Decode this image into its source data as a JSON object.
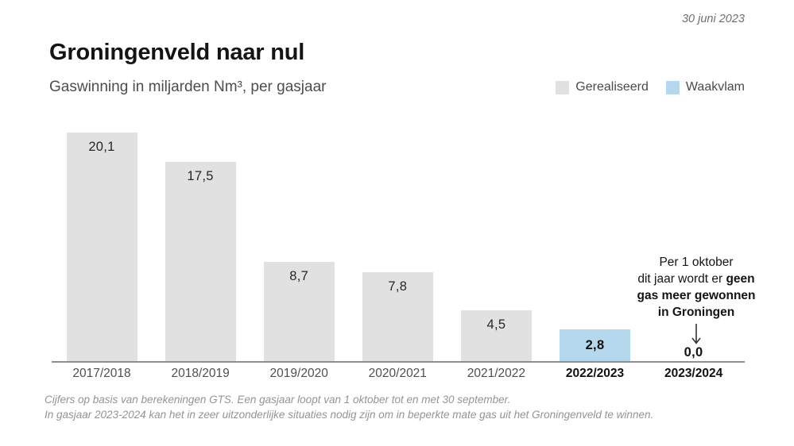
{
  "date": "30 juni 2023",
  "title": "Groningenveld naar nul",
  "subtitle": "Gaswinning in miljarden Nm³, per gasjaar",
  "legend": {
    "items": [
      {
        "label": "Gerealiseerd",
        "color": "#e1e1e1"
      },
      {
        "label": "Waakvlam",
        "color": "#b5d8ec"
      }
    ]
  },
  "chart_data": {
    "type": "bar",
    "title": "Groningenveld naar nul",
    "subtitle": "Gaswinning in miljarden Nm³, per gasjaar",
    "unit": "miljarden Nm³ per gasjaar",
    "categories": [
      "2017/2018",
      "2018/2019",
      "2019/2020",
      "2020/2021",
      "2021/2022",
      "2022/2023",
      "2023/2024"
    ],
    "values": [
      20.1,
      17.5,
      8.7,
      7.8,
      4.5,
      2.8,
      0.0
    ],
    "value_labels": [
      "20,1",
      "17,5",
      "8,7",
      "7,8",
      "4,5",
      "2,8",
      "0,0"
    ],
    "bar_colors": [
      "#e1e1e1",
      "#e1e1e1",
      "#e1e1e1",
      "#e1e1e1",
      "#e1e1e1",
      "#b5d8ec",
      "#b5d8ec"
    ],
    "series": [
      {
        "name": "Gerealiseerd",
        "color": "#e1e1e1",
        "categories": [
          "2017/2018",
          "2018/2019",
          "2019/2020",
          "2020/2021",
          "2021/2022"
        ],
        "values": [
          20.1,
          17.5,
          8.7,
          7.8,
          4.5
        ]
      },
      {
        "name": "Waakvlam",
        "color": "#b5d8ec",
        "categories": [
          "2022/2023",
          "2023/2024"
        ],
        "values": [
          2.8,
          0.0
        ]
      }
    ],
    "emphasized_categories": [
      "2022/2023",
      "2023/2024"
    ],
    "ylim": [
      0,
      21
    ],
    "grid": false,
    "legend_position": "top-right"
  },
  "annotation": {
    "line1": "Per 1 oktober",
    "line2_regular": "dit jaar wordt er ",
    "line2_bold": "geen",
    "line3_bold": "gas meer gewonnen",
    "line4_bold": "in Groningen",
    "arrow_icon": "↓"
  },
  "footnote": {
    "line1": "Cijfers op basis van berekeningen GTS. Een gasjaar loopt van 1 oktober tot en met 30 september.",
    "line2": "In gasjaar 2023-2024 kan het in zeer uitzonderlijke situaties nodig zijn om in beperkte mate gas uit het Groningenveld te winnen."
  },
  "colors": {
    "axis": "#8f8f8f",
    "title_text": "#141414",
    "muted_text": "#4d4d4d",
    "footnote_text": "#949494"
  }
}
